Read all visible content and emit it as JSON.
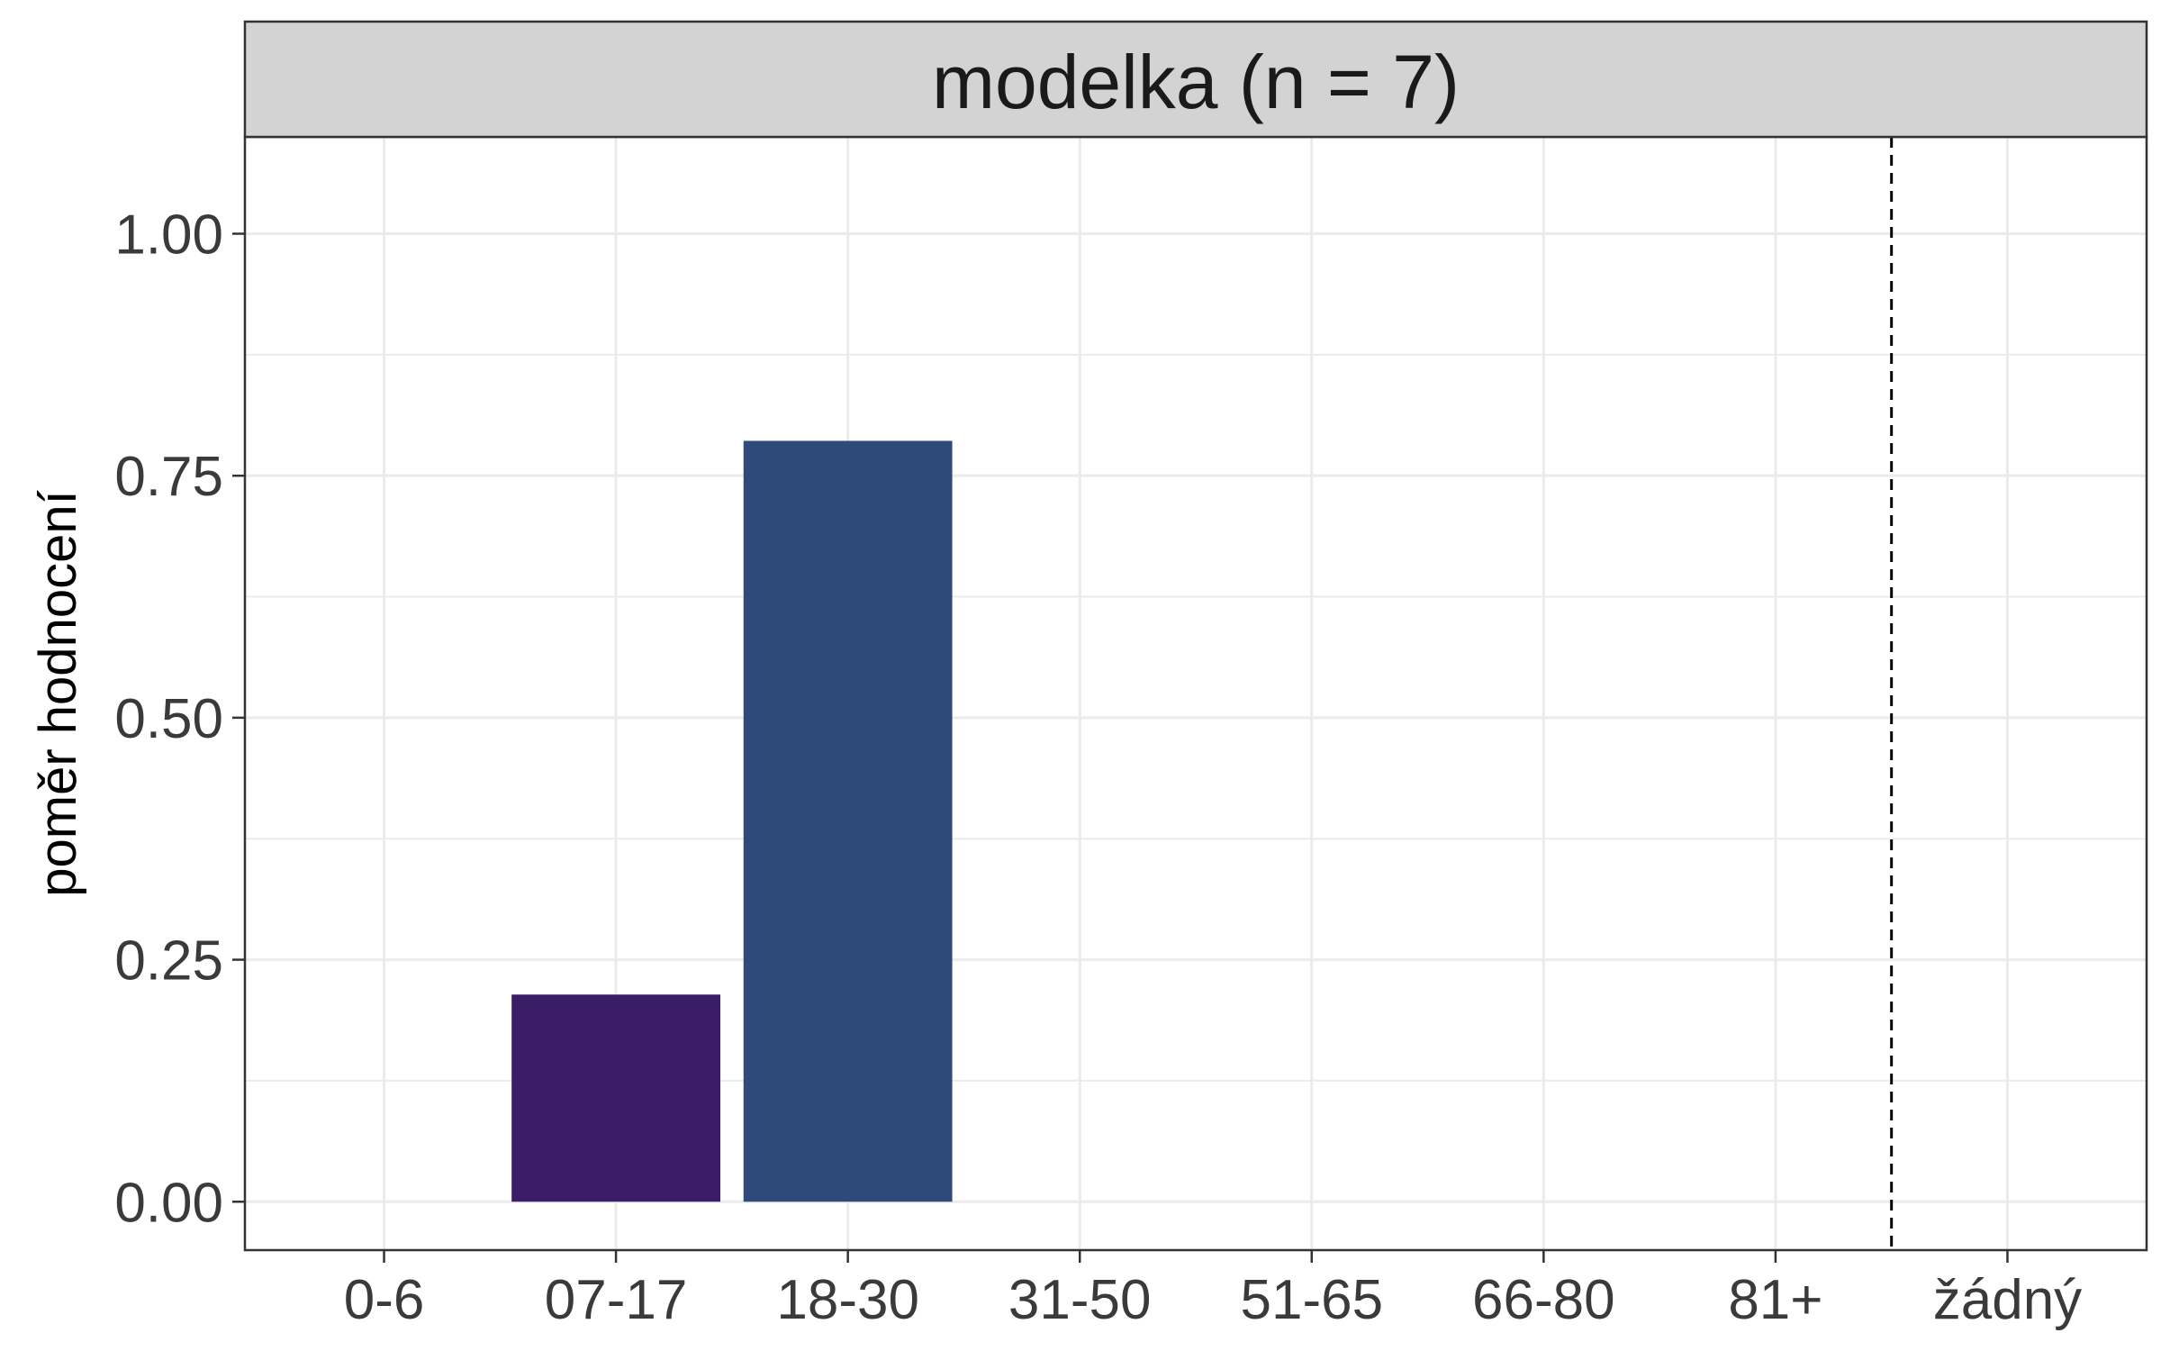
{
  "chart_data": {
    "type": "bar",
    "facet_title": "modelka (n = 7)",
    "ylabel": "poměr hodnocení",
    "xlabel": "",
    "categories": [
      "0-6",
      "07-17",
      "18-30",
      "31-50",
      "51-65",
      "66-80",
      "81+",
      "žádný"
    ],
    "values": [
      0,
      0.214,
      0.786,
      0,
      0,
      0,
      0,
      0
    ],
    "bar_colors": [
      "#3b1c66",
      "#3b1c66",
      "#2d4a78",
      "#2d4a78",
      "#2d4a78",
      "#2d4a78",
      "#2d4a78",
      "#2d4a78"
    ],
    "ylim": [
      -0.05,
      1.1
    ],
    "yticks": [
      0.0,
      0.25,
      0.5,
      0.75,
      1.0
    ],
    "ytick_labels": [
      "0.00",
      "0.25",
      "0.50",
      "0.75",
      "1.00"
    ],
    "reference_line": {
      "style": "dashed",
      "between": [
        "81+",
        "žádný"
      ]
    },
    "grid": true,
    "legend": "none",
    "colors": {
      "strip_bg": "#d3d3d3",
      "grid": "#ebebeb",
      "panel_border": "#333333",
      "ref_line": "#000000"
    }
  }
}
